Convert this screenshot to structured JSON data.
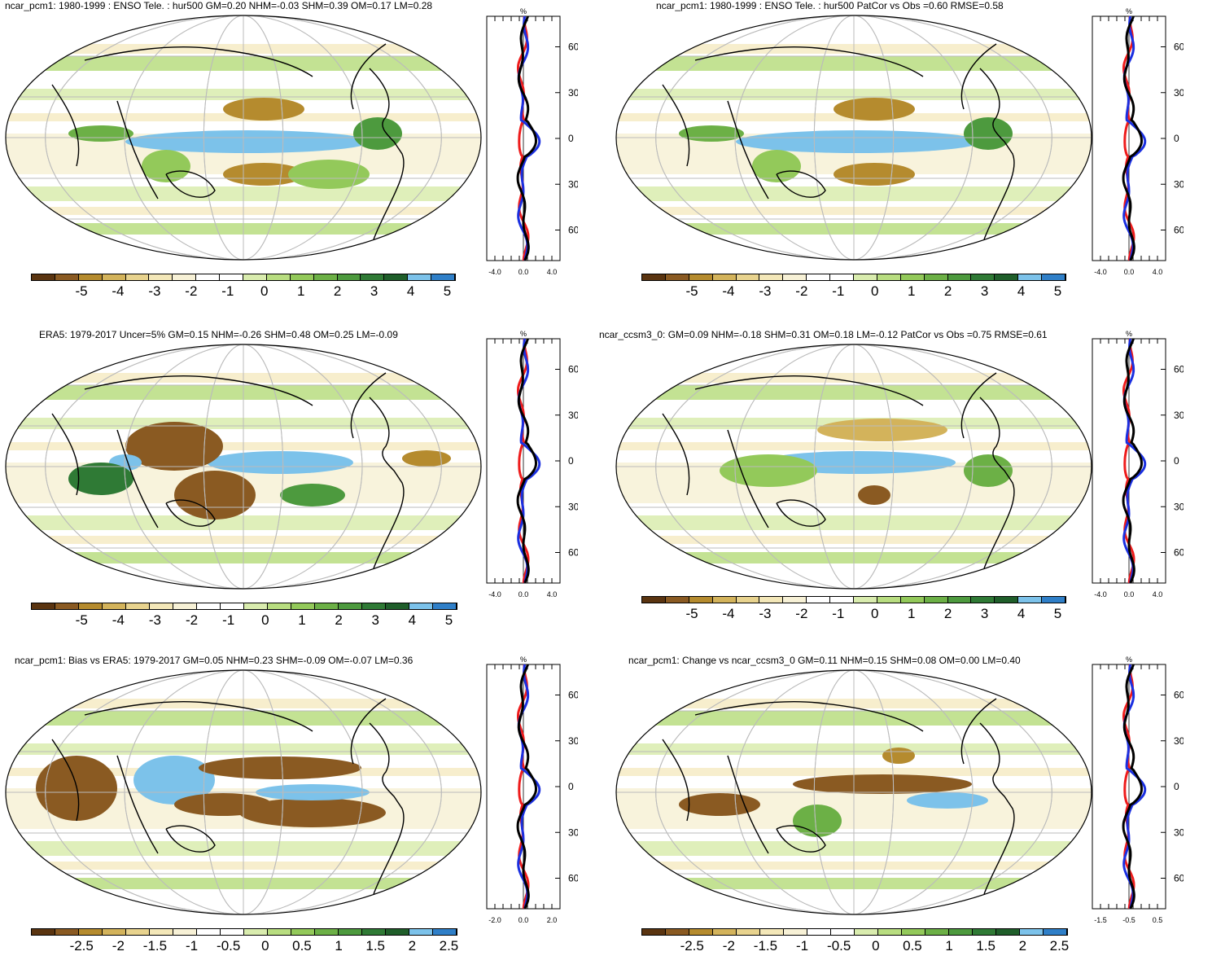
{
  "panels": [
    {
      "id": "p1",
      "title": "ncar_pcm1: 1980-1999 : ENSO Tele. : hur500 GM=0.20 NHM=-0.03 SHM=0.39 OM=0.17 LM=0.28",
      "colorbar_labels": [
        "-5",
        "-4",
        "-3",
        "-2",
        "-1",
        "0",
        "1",
        "2",
        "3",
        "4",
        "5"
      ],
      "zonal_xticks": [
        "-4.0",
        "0.0",
        "4.0"
      ],
      "zonal_unit": "%",
      "lat_labels": [
        "60N",
        "30N",
        "0",
        "30S",
        "60S"
      ]
    },
    {
      "id": "p2",
      "title": "ncar_pcm1: 1980-1999 : ENSO Tele. : hur500 PatCor vs Obs =0.60 RMSE=0.58",
      "colorbar_labels": [
        "-5",
        "-4",
        "-3",
        "-2",
        "-1",
        "0",
        "1",
        "2",
        "3",
        "4",
        "5"
      ],
      "zonal_xticks": [
        "-4.0",
        "0.0",
        "4.0"
      ],
      "zonal_unit": "%",
      "lat_labels": [
        "60N",
        "30N",
        "0",
        "30S",
        "60S"
      ]
    },
    {
      "id": "p3",
      "title": "ERA5: 1979-2017 Uncer=5% GM=0.15 NHM=-0.26 SHM=0.48 OM=0.25 LM=-0.09",
      "colorbar_labels": [
        "-5",
        "-4",
        "-3",
        "-2",
        "-1",
        "0",
        "1",
        "2",
        "3",
        "4",
        "5"
      ],
      "zonal_xticks": [
        "-4.0",
        "0.0",
        "4.0"
      ],
      "zonal_unit": "%",
      "lat_labels": [
        "60N",
        "30N",
        "0",
        "30S",
        "60S"
      ]
    },
    {
      "id": "p4",
      "title": "ncar_ccsm3_0: GM=0.09 NHM=-0.18 SHM=0.31 OM=0.18 LM=-0.12 PatCor vs Obs =0.75 RMSE=0.61",
      "colorbar_labels": [
        "-5",
        "-4",
        "-3",
        "-2",
        "-1",
        "0",
        "1",
        "2",
        "3",
        "4",
        "5"
      ],
      "zonal_xticks": [
        "-4.0",
        "0.0",
        "4.0"
      ],
      "zonal_unit": "%",
      "lat_labels": [
        "60N",
        "30N",
        "0",
        "30S",
        "60S"
      ]
    },
    {
      "id": "p5",
      "title": "ncar_pcm1: Bias vs ERA5: 1979-2017 GM=0.05 NHM=0.23 SHM=-0.09 OM=-0.07 LM=0.36",
      "colorbar_labels": [
        "-2.5",
        "-2",
        "-1.5",
        "-1",
        "-0.5",
        "0",
        "0.5",
        "1",
        "1.5",
        "2",
        "2.5"
      ],
      "zonal_xticks": [
        "-2.0",
        "0.0",
        "2.0"
      ],
      "zonal_unit": "%",
      "lat_labels": [
        "60N",
        "30N",
        "0",
        "30S",
        "60S"
      ]
    },
    {
      "id": "p6",
      "title": "ncar_pcm1: Change vs ncar_ccsm3_0 GM=0.11 NHM=0.15 SHM=0.08 OM=0.00 LM=0.40",
      "colorbar_labels": [
        "-2.5",
        "-2",
        "-1.5",
        "-1",
        "-0.5",
        "0",
        "0.5",
        "1",
        "1.5",
        "2",
        "2.5"
      ],
      "zonal_xticks": [
        "-1.5",
        "-0.5",
        "0.5"
      ],
      "zonal_unit": "%",
      "lat_labels": [
        "60N",
        "30N",
        "0",
        "30S",
        "60S"
      ]
    }
  ],
  "colors": {
    "palette": [
      "#5a3410",
      "#8a5a22",
      "#b58b2e",
      "#d3b35b",
      "#e8d38e",
      "#f3e7b8",
      "#f7f1d6",
      "#ffffff",
      "#ffffff",
      "#d9ecae",
      "#b8dd80",
      "#93c95a",
      "#6cb046",
      "#4d9a3e",
      "#2f7a35",
      "#1f5e2a",
      "#7cc2ea",
      "#2f7fc8"
    ],
    "red_line": "#ee1c1c",
    "blue_line": "#1a2fe0",
    "black_line": "#000000"
  }
}
